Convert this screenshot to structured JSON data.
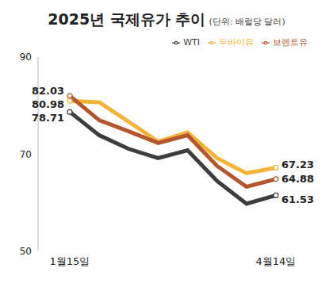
{
  "chart_data": {
    "type": "line",
    "title": "2025년 국제유가 추이",
    "subtitle": "(단위: 배럴당 달러)",
    "categories": [
      "1월15일",
      null,
      null,
      null,
      null,
      null,
      null,
      "4월14일"
    ],
    "series": [
      {
        "name": "두바이유",
        "color": "#f5b335",
        "values": [
          80.98,
          80.7,
          76.7,
          72.6,
          74.5,
          69.2,
          66.1,
          67.23
        ]
      },
      {
        "name": "브렌트유",
        "color": "#b5562e",
        "values": [
          82.03,
          77.0,
          74.7,
          72.3,
          73.9,
          67.6,
          63.3,
          64.88
        ]
      },
      {
        "name": "WTI",
        "color": "#3d3d3d",
        "values": [
          78.71,
          73.9,
          71.1,
          69.2,
          70.8,
          64.5,
          59.8,
          61.53
        ]
      }
    ],
    "ylim": [
      50,
      90
    ],
    "yticks": [
      50,
      70,
      90
    ],
    "grid": false,
    "legend": "top-right",
    "data_labels": true
  }
}
